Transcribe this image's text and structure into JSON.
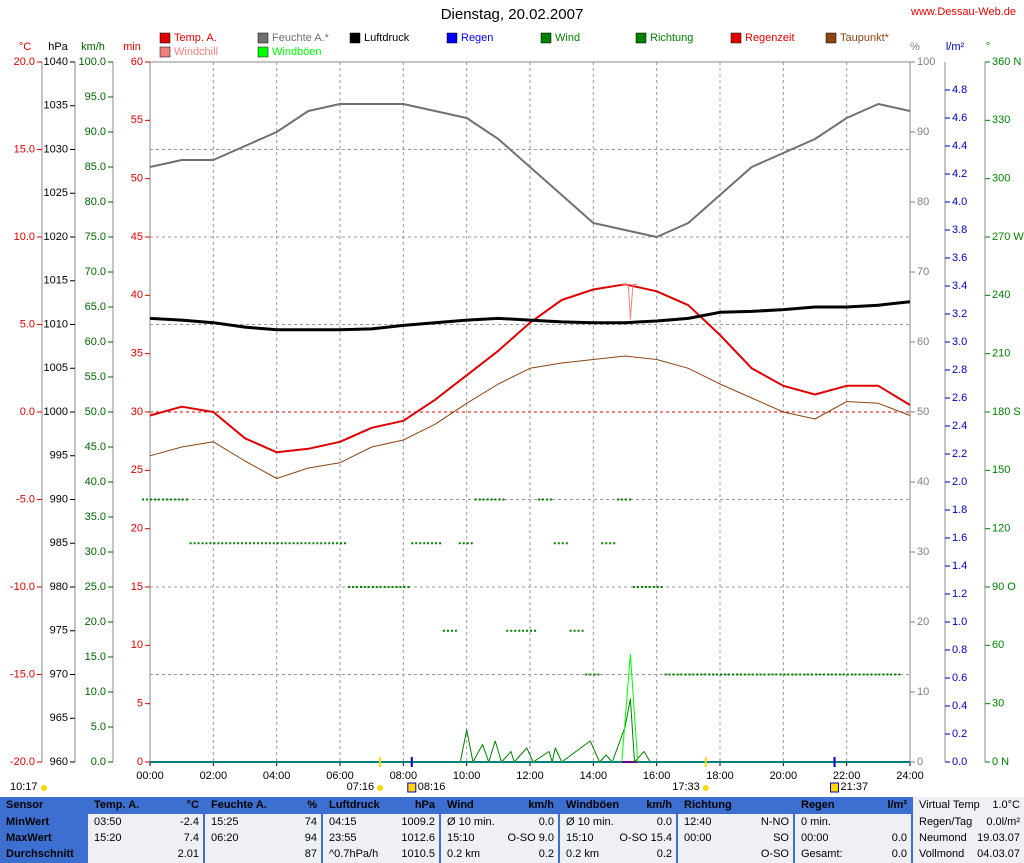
{
  "chart_data": {
    "type": "line",
    "title": "Dienstag, 20.02.2007",
    "source": "www.Dessau-Web.de",
    "day_length": "10:17",
    "x": [
      0,
      1,
      2,
      3,
      4,
      5,
      6,
      7,
      8,
      9,
      10,
      11,
      12,
      13,
      14,
      15,
      16,
      17,
      18,
      19,
      20,
      21,
      22,
      23,
      24
    ],
    "xlim": [
      0,
      24
    ],
    "xticks": [
      {
        "value": 0,
        "label": "00:00"
      },
      {
        "value": 2,
        "label": "02:00"
      },
      {
        "value": 4,
        "label": "04:00"
      },
      {
        "value": 6,
        "label": "06:00"
      },
      {
        "value": 8,
        "label": "08:00"
      },
      {
        "value": 10,
        "label": "10:00"
      },
      {
        "value": 12,
        "label": "12:00"
      },
      {
        "value": 14,
        "label": "14:00"
      },
      {
        "value": 16,
        "label": "16:00"
      },
      {
        "value": 18,
        "label": "18:00"
      },
      {
        "value": 20,
        "label": "20:00"
      },
      {
        "value": 22,
        "label": "22:00"
      },
      {
        "value": 24,
        "label": "24:00"
      }
    ],
    "grid": true,
    "axes": [
      {
        "unit": "°C",
        "color": "#e00000",
        "ylim": [
          -20,
          20
        ],
        "yticks": [
          {
            "value": -20,
            "label": "-20.0"
          },
          {
            "value": -15,
            "label": "-15.0"
          },
          {
            "value": -10,
            "label": "-10.0"
          },
          {
            "value": -5,
            "label": "-5.0"
          },
          {
            "value": 0,
            "label": "0.0"
          },
          {
            "value": 5,
            "label": "5.0"
          },
          {
            "value": 10,
            "label": "10.0"
          },
          {
            "value": 15,
            "label": "15.0"
          },
          {
            "value": 20,
            "label": "20.0"
          }
        ]
      },
      {
        "unit": "hPa",
        "color": "#000000",
        "ylim": [
          960,
          1040
        ],
        "yticks": [
          960,
          965,
          970,
          975,
          980,
          985,
          990,
          995,
          1000,
          1005,
          1010,
          1015,
          1020,
          1025,
          1030,
          1035,
          1040
        ]
      },
      {
        "unit": "km/h",
        "color": "#006400",
        "ylim": [
          0,
          100
        ],
        "yticks": [
          {
            "value": 0,
            "label": "0.0"
          },
          {
            "value": 5,
            "label": "5.0"
          },
          {
            "value": 10,
            "label": "10.0"
          },
          {
            "value": 15,
            "label": "15.0"
          },
          {
            "value": 20,
            "label": "20.0"
          },
          {
            "value": 25,
            "label": "25.0"
          },
          {
            "value": 30,
            "label": "30.0"
          },
          {
            "value": 35,
            "label": "35.0"
          },
          {
            "value": 40,
            "label": "40.0"
          },
          {
            "value": 45,
            "label": "45.0"
          },
          {
            "value": 50,
            "label": "50.0"
          },
          {
            "value": 55,
            "label": "55.0"
          },
          {
            "value": 60,
            "label": "60.0"
          },
          {
            "value": 65,
            "label": "65.0"
          },
          {
            "value": 70,
            "label": "70.0"
          },
          {
            "value": 75,
            "label": "75.0"
          },
          {
            "value": 80,
            "label": "80.0"
          },
          {
            "value": 85,
            "label": "85.0"
          },
          {
            "value": 90,
            "label": "90.0"
          },
          {
            "value": 95,
            "label": "95.0"
          },
          {
            "value": 100,
            "label": "100.0"
          }
        ]
      },
      {
        "unit": "min",
        "color": "#e00000",
        "ylim": [
          0,
          60
        ],
        "yticks": [
          0,
          5,
          10,
          15,
          20,
          25,
          30,
          35,
          40,
          45,
          50,
          55,
          60
        ]
      },
      {
        "unit": "%",
        "color": "#808080",
        "ylim": [
          0,
          100
        ],
        "yticks": [
          0,
          10,
          20,
          30,
          40,
          50,
          60,
          70,
          80,
          90,
          100
        ]
      },
      {
        "unit": "l/m²",
        "color": "#0000c0",
        "ylim": [
          0,
          5
        ],
        "yticks": [
          {
            "value": 0,
            "label": "0.0"
          },
          0.2,
          0.4,
          0.6,
          0.8,
          {
            "value": 1,
            "label": "1.0"
          },
          1.2,
          1.4,
          1.6,
          1.8,
          {
            "value": 2,
            "label": "2.0"
          },
          2.2,
          2.4,
          2.6,
          2.8,
          {
            "value": 3,
            "label": "3.0"
          },
          3.2,
          3.4,
          3.6,
          3.8,
          {
            "value": 4,
            "label": "4.0"
          },
          4.2,
          4.4,
          4.6,
          4.8
        ]
      },
      {
        "unit": "°",
        "color": "#008000",
        "ylim": [
          0,
          360
        ],
        "yticks": [
          {
            "value": 0,
            "label": "0 N"
          },
          30,
          60,
          {
            "value": 90,
            "label": "90 O"
          },
          120,
          150,
          {
            "value": 180,
            "label": "180 S"
          },
          210,
          240,
          {
            "value": 270,
            "label": "270 W"
          },
          300,
          330,
          {
            "value": 360,
            "label": "360 N"
          }
        ]
      }
    ],
    "series": [
      {
        "name": "Temp. A.",
        "color": "#e00000",
        "axis": 0,
        "values": [
          -0.2,
          0.3,
          0.0,
          -1.5,
          -2.3,
          -2.1,
          -1.7,
          -0.9,
          -0.5,
          0.7,
          2.1,
          3.5,
          5.1,
          6.4,
          7.0,
          7.3,
          6.9,
          6.1,
          4.4,
          2.5,
          1.5,
          1.0,
          1.5,
          1.5,
          0.4
        ]
      },
      {
        "name": "Feuchte A.*",
        "color": "#707070",
        "axis": 4,
        "values": [
          85,
          86,
          86,
          88,
          90,
          93,
          94,
          94,
          94,
          93,
          92,
          89,
          85,
          81,
          77,
          76,
          75,
          77,
          81,
          85,
          87,
          89,
          92,
          94,
          93
        ]
      },
      {
        "name": "Luftdruck",
        "color": "#000000",
        "axis": 1,
        "values": [
          1010.7,
          1010.5,
          1010.2,
          1009.7,
          1009.4,
          1009.4,
          1009.4,
          1009.5,
          1009.9,
          1010.2,
          1010.5,
          1010.7,
          1010.5,
          1010.3,
          1010.2,
          1010.2,
          1010.4,
          1010.7,
          1011.4,
          1011.5,
          1011.7,
          1012.0,
          1012.0,
          1012.2,
          1012.6
        ]
      },
      {
        "name": "Regen",
        "color": "#0000ff",
        "axis": 5,
        "x": [
          0,
          24
        ],
        "values": [
          0,
          0
        ]
      },
      {
        "name": "Wind",
        "color": "#008000",
        "axis": 2,
        "x": [
          0,
          9.8,
          10.0,
          10.2,
          10.5,
          10.7,
          10.9,
          11.1,
          11.4,
          11.5,
          11.9,
          12.1,
          12.6,
          12.7,
          12.8,
          13.0,
          13.9,
          14.2,
          14.4,
          14.6,
          15.0,
          15.17,
          15.3,
          15.6,
          15.8,
          24
        ],
        "values": [
          0,
          0,
          4.6,
          0,
          2.5,
          0,
          3.0,
          0,
          1.5,
          0,
          2.0,
          0,
          1.5,
          0,
          2.0,
          0,
          3.0,
          0,
          1.0,
          0,
          5.0,
          9.0,
          0,
          1.5,
          0,
          0
        ]
      },
      {
        "name": "Richtung",
        "color": "#008000",
        "axis": 6,
        "type": "scatter",
        "x": [
          0,
          0.5,
          1,
          1.5,
          2,
          2.5,
          3,
          3.5,
          4,
          4.5,
          5,
          5.5,
          6,
          6.5,
          7,
          7.5,
          8,
          8.5,
          9,
          9.5,
          10,
          10.5,
          11,
          11.5,
          12,
          12.5,
          13,
          13.5,
          14,
          14.5,
          15,
          15.5,
          16,
          16.5,
          17,
          17.5,
          18,
          18.5,
          19,
          19.5,
          20,
          20.5,
          21,
          21.5,
          22,
          22.5,
          23,
          23.5
        ],
        "values": [
          135,
          135,
          135,
          112.5,
          112.5,
          112.5,
          112.5,
          112.5,
          112.5,
          112.5,
          112.5,
          112.5,
          112.5,
          90,
          90,
          90,
          90,
          112.5,
          112.5,
          67.5,
          112.5,
          135,
          135,
          67.5,
          67.5,
          135,
          112.5,
          67.5,
          45,
          112.5,
          135,
          90,
          90,
          45,
          45,
          45,
          45,
          45,
          45,
          45,
          45,
          45,
          45,
          45,
          45,
          45,
          45,
          45
        ]
      },
      {
        "name": "Regenzeit",
        "color": "#e00000",
        "axis": 3,
        "x": [
          0,
          24
        ],
        "values": [
          0,
          0
        ]
      },
      {
        "name": "Taupunkt*",
        "color": "#8b4513",
        "axis": 0,
        "values": [
          -2.5,
          -2.0,
          -1.7,
          -2.8,
          -3.8,
          -3.2,
          -2.9,
          -2.0,
          -1.6,
          -0.7,
          0.5,
          1.6,
          2.5,
          2.8,
          3.0,
          3.2,
          3.0,
          2.5,
          1.6,
          0.8,
          0.0,
          -0.4,
          0.6,
          0.5,
          -0.2
        ]
      },
      {
        "name": "Windchill",
        "color": "#f08080",
        "axis": 0,
        "x": [
          14.9,
          15.1,
          15.17,
          15.25,
          15.4
        ],
        "values": [
          7.3,
          7.3,
          5.3,
          7.3,
          7.3
        ]
      },
      {
        "name": "Windböen",
        "color": "#00ff00",
        "axis": 2,
        "x": [
          0,
          14.9,
          15.17,
          15.4,
          24
        ],
        "values": [
          0,
          0,
          15.4,
          0,
          0
        ]
      }
    ],
    "annotations": [
      {
        "x": 7.267,
        "label": "07:16"
      },
      {
        "x": 8.267,
        "label": "08:16"
      },
      {
        "x": 17.55,
        "label": "17:33"
      },
      {
        "x": 21.617,
        "label": "21:37"
      }
    ]
  },
  "table": {
    "columns": [
      {
        "name": "Sensor"
      },
      {
        "name": "Temp. A.",
        "unit": "°C"
      },
      {
        "name": "Feuchte A.",
        "unit": "%"
      },
      {
        "name": "Luftdruck",
        "unit": "hPa"
      },
      {
        "name": "Wind",
        "unit": "km/h"
      },
      {
        "name": "Windböen",
        "unit": "km/h"
      },
      {
        "name": "Richtung"
      },
      {
        "name": "Regen",
        "unit": "l/m²"
      }
    ],
    "rows": [
      {
        "label": "MinWert",
        "cells": [
          {
            "left": "03:50",
            "right": "-2.4"
          },
          {
            "left": "15:25",
            "right": "74"
          },
          {
            "left": "04:15",
            "right": "1009.2"
          },
          {
            "left": "Ø 10 min.",
            "right": "0.0"
          },
          {
            "left": "Ø 10 min.",
            "right": "0.0"
          },
          {
            "left": "12:40",
            "right": "N-NO"
          },
          {
            "left": "0 min."
          }
        ]
      },
      {
        "label": "MaxWert",
        "cells": [
          {
            "left": "15:20",
            "right": "7.4"
          },
          {
            "left": "06:20",
            "right": "94"
          },
          {
            "left": "23:55",
            "right": "1012.6"
          },
          {
            "left": "15:10",
            "right": "O-SO 9.0"
          },
          {
            "left": "15:10",
            "right": "O-SO 15.4"
          },
          {
            "left": "00:00",
            "right": "SO"
          },
          {
            "left": "00:00",
            "right": "0.0"
          }
        ]
      },
      {
        "label": "Durchschnitt",
        "cells": [
          {
            "right": "2.01"
          },
          {
            "right": "87"
          },
          {
            "left": "^0.7hPa/h",
            "right": "1010.5"
          },
          {
            "left": "0.2 km",
            "right": "0.2"
          },
          {
            "left": "0.2 km",
            "right": "0.2"
          },
          {
            "right": "O-SO"
          },
          {
            "left": "Gesamt:",
            "right": "0.0"
          }
        ]
      }
    ],
    "side": [
      {
        "label": "Virtual Temp",
        "value": "1.0°C"
      },
      {
        "label": "Regen/Tag",
        "value": "0.0l/m²"
      },
      {
        "label": "Neumond",
        "value": "19.03.07"
      },
      {
        "label": "Vollmond",
        "value": "04.03.07"
      }
    ]
  }
}
